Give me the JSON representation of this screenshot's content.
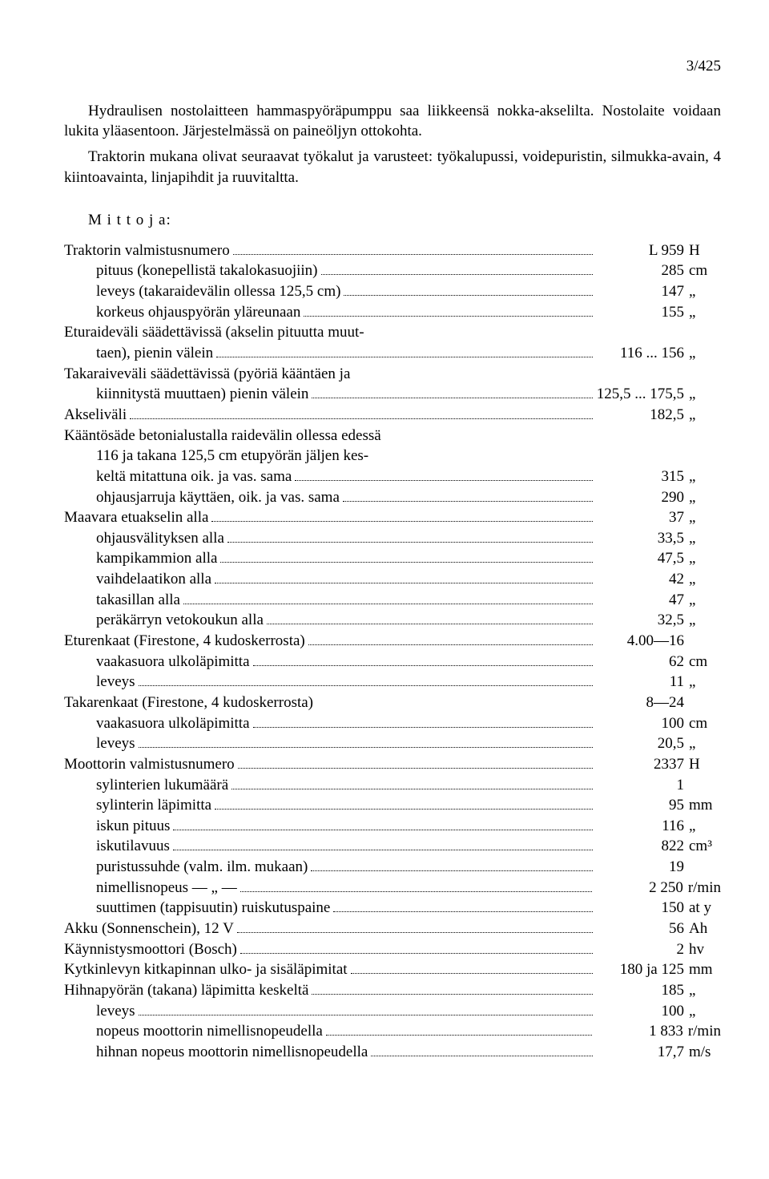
{
  "page_number": "3/425",
  "paragraphs": [
    "Hydraulisen nostolaitteen hammaspyöräpumppu saa liikkeensä nokka-akselilta. Nostolaite voidaan lukita yläasentoon. Järjestelmässä on paineöljyn ottokohta.",
    "Traktorin mukana olivat seuraavat työkalut ja varusteet: työkalupussi, voidepuristin, silmukka-avain, 4 kiintoavainta, linjapihdit ja ruuvitaltta."
  ],
  "section_heading": "M i t t o j a:",
  "rows": [
    {
      "indent": 0,
      "label": "Traktorin valmistusnumero",
      "value": "L   959",
      "unit": "H"
    },
    {
      "indent": 1,
      "label": "pituus (konepellistä takalokasuojiin)",
      "value": "285",
      "unit": "cm"
    },
    {
      "indent": 1,
      "label": "leveys (takaraidevälin ollessa 125,5 cm)",
      "value": "147",
      "unit": "„"
    },
    {
      "indent": 1,
      "label": "korkeus ohjauspyörän yläreunaan",
      "value": "155",
      "unit": "„"
    },
    {
      "indent": 0,
      "label": "Eturaideväli säädettävissä (akselin pituutta muut-",
      "cont": "taen), pienin välein",
      "value": "116 ... 156",
      "unit": "„"
    },
    {
      "indent": 0,
      "label": "Takaraiveväli säädettävissä (pyöriä kääntäen ja",
      "cont": "kiinnitystä muuttaen) pienin välein",
      "value": "125,5 ... 175,5",
      "unit": "„"
    },
    {
      "indent": 0,
      "label": "Akseliväli",
      "value": "182,5",
      "unit": "„"
    },
    {
      "indent": 0,
      "label": "Kääntösäde betonialustalla raidevälin ollessa edessä",
      "cont": "116 ja takana 125,5 cm etupyörän jäljen kes-",
      "cont2": "keltä mitattuna oik. ja vas. sama",
      "value": "315",
      "unit": "„"
    },
    {
      "indent": 1,
      "label": "ohjausjarruja käyttäen, oik. ja vas. sama",
      "value": "290",
      "unit": "„"
    },
    {
      "indent": 0,
      "label": "Maavara etuakselin alla",
      "value": "37",
      "unit": "„"
    },
    {
      "indent": 1,
      "label": "ohjausvälityksen alla",
      "value": "33,5",
      "unit": "„"
    },
    {
      "indent": 1,
      "label": "kampikammion alla",
      "value": "47,5",
      "unit": "„"
    },
    {
      "indent": 1,
      "label": "vaihdelaatikon alla",
      "value": "42",
      "unit": "„"
    },
    {
      "indent": 1,
      "label": "takasillan alla",
      "value": "47",
      "unit": "„"
    },
    {
      "indent": 1,
      "label": "peräkärryn vetokoukun alla",
      "value": "32,5",
      "unit": "„"
    },
    {
      "indent": 0,
      "label": "Eturenkaat (Firestone, 4 kudoskerrosta)",
      "value": "4.00—16",
      "unit": ""
    },
    {
      "indent": 1,
      "label": "vaakasuora ulkoläpimitta",
      "value": "62",
      "unit": "cm"
    },
    {
      "indent": 1,
      "label": "leveys",
      "value": "11",
      "unit": "„"
    },
    {
      "indent": 0,
      "label": "Takarenkaat (Firestone, 4 kudoskerrosta)",
      "value": "8—24",
      "unit": "",
      "noleader": true
    },
    {
      "indent": 1,
      "label": "vaakasuora ulkoläpimitta",
      "value": "100",
      "unit": "cm"
    },
    {
      "indent": 1,
      "label": "leveys",
      "value": "20,5",
      "unit": "„"
    },
    {
      "indent": 0,
      "label": "Moottorin valmistusnumero",
      "value": "2337",
      "unit": "H"
    },
    {
      "indent": 1,
      "label": "sylinterien lukumäärä",
      "value": "1",
      "unit": ""
    },
    {
      "indent": 1,
      "label": "sylinterin läpimitta",
      "value": "95",
      "unit": "mm"
    },
    {
      "indent": 1,
      "label": "iskun pituus",
      "value": "116",
      "unit": "„"
    },
    {
      "indent": 1,
      "label": "iskutilavuus",
      "value": "822",
      "unit": "cm³"
    },
    {
      "indent": 1,
      "label": "puristussuhde (valm. ilm. mukaan)",
      "value": "19",
      "unit": ""
    },
    {
      "indent": 1,
      "label": "nimellisnopeus        — „ —",
      "value": "2 250",
      "unit": "r/min"
    },
    {
      "indent": 1,
      "label": "suuttimen (tappisuutin) ruiskutuspaine",
      "value": "150",
      "unit": "at y"
    },
    {
      "indent": 0,
      "label": "Akku (Sonnenschein), 12 V",
      "value": "56",
      "unit": "Ah"
    },
    {
      "indent": 0,
      "label": "Käynnistysmoottori (Bosch)",
      "value": "2",
      "unit": "hv"
    },
    {
      "indent": 0,
      "label": "Kytkinlevyn kitkapinnan ulko- ja sisäläpimitat",
      "value": "180 ja 125",
      "unit": "mm"
    },
    {
      "indent": 0,
      "label": "Hihnapyörän (takana) läpimitta keskeltä",
      "value": "185",
      "unit": "„"
    },
    {
      "indent": 1,
      "label": "leveys",
      "value": "100",
      "unit": "„"
    },
    {
      "indent": 1,
      "label": "nopeus moottorin nimellisnopeudella",
      "value": "1 833",
      "unit": "r/min"
    },
    {
      "indent": 1,
      "label": "hihnan nopeus moottorin nimellisnopeudella",
      "value": "17,7",
      "unit": "m/s"
    }
  ]
}
